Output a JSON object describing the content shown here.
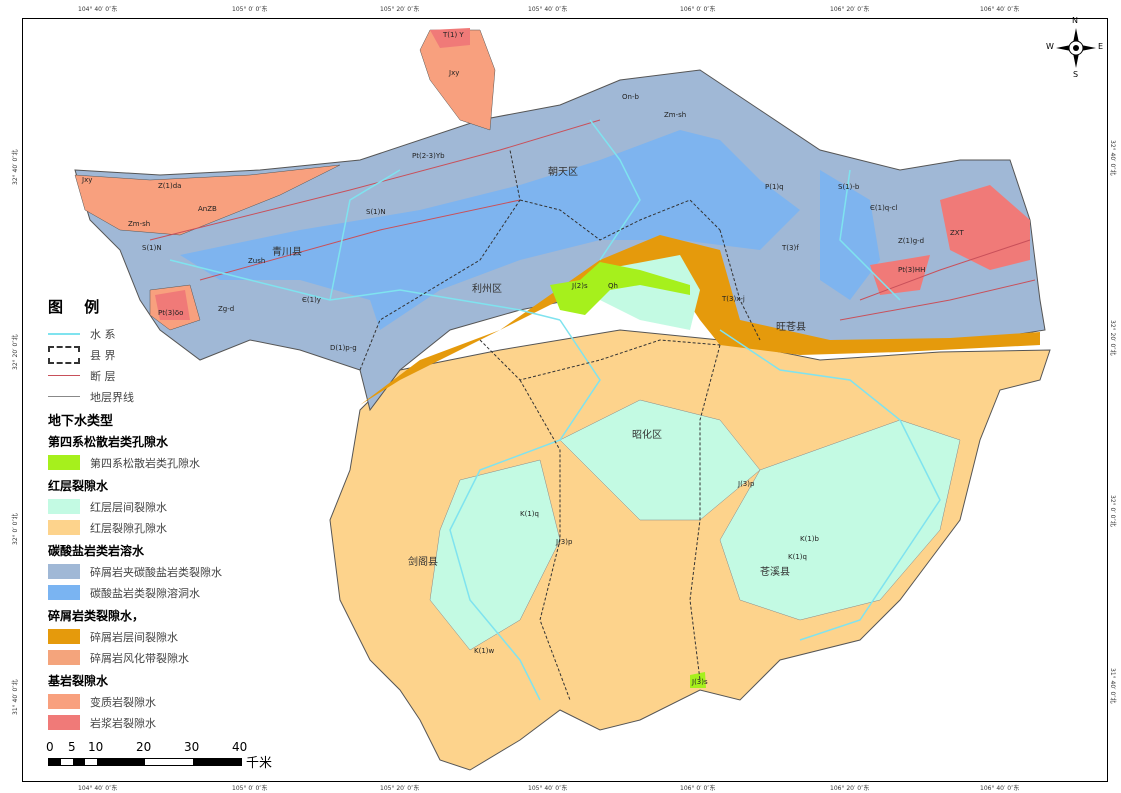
{
  "graticule": {
    "top": [
      "104° 40′ 0″东",
      "105° 0′ 0″东",
      "105° 20′ 0″东",
      "105° 40′ 0″东",
      "106° 0′ 0″东",
      "106° 20′ 0″东",
      "106° 40′ 0″东"
    ],
    "left": [
      "32° 40′ 0″北",
      "32° 20′ 0″北",
      "32° 0′ 0″北",
      "31° 40′ 0″北"
    ]
  },
  "compass": {
    "n": "N",
    "s": "S",
    "e": "E",
    "w": "W"
  },
  "counties": [
    "青川县",
    "朝天区",
    "利州区",
    "旺苍县",
    "昭化区",
    "剑阁县",
    "苍溪县"
  ],
  "codes": [
    "T(1) Y",
    "Jxy",
    "Pt(2-3)Yb",
    "Zm-sh",
    "Z(1)da",
    "AnZB",
    "Jxy",
    "Zm-sh",
    "S(1)N",
    "S(1)N",
    "Zm",
    "Zush",
    "Zm",
    "Zg-d",
    "Pt(3)δο",
    "Є(1)y",
    "D(1)p-g",
    "On-b",
    "Zm-sh",
    "P(1)q",
    "S(1)-b",
    "Є(1)q-cl",
    "Z(1)g-d",
    "ZXT",
    "Pt(3)HH",
    "T(3)f",
    "T(3)x-j",
    "J(2)s",
    "Qh",
    "J(3)p",
    "K(1)q",
    "K(1)b",
    "K(1)q",
    "J(3)p",
    "J(3)p",
    "K(1)w",
    "J(3)s"
  ],
  "legend": {
    "title": "图 例",
    "lines": [
      {
        "label": "水 系",
        "color": "#7fe3ef"
      },
      {
        "label": "县 界",
        "color": "#333333"
      },
      {
        "label": "断 层",
        "color": "#c8505a"
      },
      {
        "label": "地层界线",
        "color": "#888888"
      }
    ],
    "heading": "地下水类型",
    "groups": [
      {
        "name": "第四系松散岩类孔隙水",
        "items": [
          {
            "label": "第四系松散岩类孔隙水",
            "color": "#a6f01c"
          }
        ]
      },
      {
        "name": "红层裂隙水",
        "items": [
          {
            "label": "红层层间裂隙水",
            "color": "#c3fae3"
          },
          {
            "label": "红层裂隙孔隙水",
            "color": "#fdd38c"
          }
        ]
      },
      {
        "name": "碳酸盐岩类岩溶水",
        "items": [
          {
            "label": "碎屑岩夹碳酸盐岩类裂隙水",
            "color": "#a0b8d6"
          },
          {
            "label": "碳酸盐岩类裂隙溶洞水",
            "color": "#7ab4f2"
          }
        ]
      },
      {
        "name": "碎屑岩类裂隙水，",
        "items": [
          {
            "label": "碎屑岩层间裂隙水",
            "color": "#e59a0c"
          },
          {
            "label": "碎屑岩风化带裂隙水",
            "color": "#f4a47c"
          }
        ]
      },
      {
        "name": "基岩裂隙水",
        "items": [
          {
            "label": "变质岩裂隙水",
            "color": "#f8a07e"
          },
          {
            "label": "岩浆岩裂隙水",
            "color": "#f07a78"
          }
        ]
      }
    ]
  },
  "scale": {
    "ticks": [
      "0",
      "5",
      "10",
      "20",
      "30",
      "40"
    ],
    "unit": "千米"
  }
}
